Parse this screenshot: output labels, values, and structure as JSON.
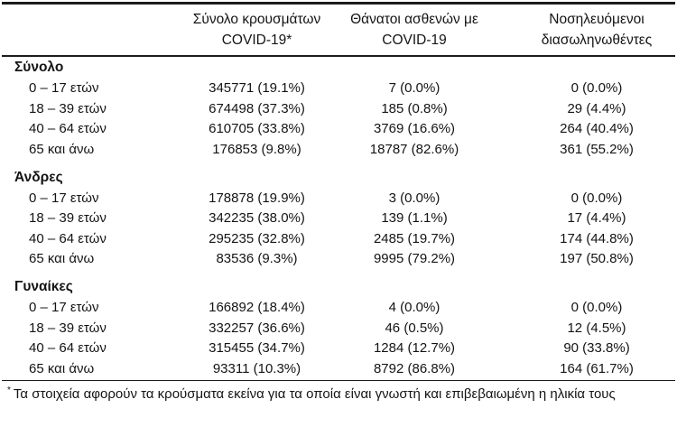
{
  "header": {
    "col_cases": "Σύνολο κρουσμάτων COVID-19*",
    "col_deaths": "Θάνατοι ασθενών με COVID-19",
    "col_intubated": "Νοσηλευόμενοι διασωληνωθέντες"
  },
  "sections": [
    {
      "title": "Σύνολο",
      "rows": [
        {
          "label": "0 – 17 ετών",
          "cases": "345771 (19.1%)",
          "deaths": "7 (0.0%)",
          "intubated": "0 (0.0%)"
        },
        {
          "label": "18 – 39 ετών",
          "cases": "674498 (37.3%)",
          "deaths": "185 (0.8%)",
          "intubated": "29 (4.4%)"
        },
        {
          "label": "40 – 64 ετών",
          "cases": "610705 (33.8%)",
          "deaths": "3769 (16.6%)",
          "intubated": "264 (40.4%)"
        },
        {
          "label": "65 και άνω",
          "cases": "176853 (9.8%)",
          "deaths": "18787 (82.6%)",
          "intubated": "361 (55.2%)"
        }
      ]
    },
    {
      "title": "Άνδρες",
      "rows": [
        {
          "label": "0 – 17 ετών",
          "cases": "178878 (19.9%)",
          "deaths": "3 (0.0%)",
          "intubated": "0 (0.0%)"
        },
        {
          "label": "18 – 39 ετών",
          "cases": "342235 (38.0%)",
          "deaths": "139 (1.1%)",
          "intubated": "17 (4.4%)"
        },
        {
          "label": "40 – 64 ετών",
          "cases": "295235 (32.8%)",
          "deaths": "2485 (19.7%)",
          "intubated": "174 (44.8%)"
        },
        {
          "label": "65 και άνω",
          "cases": "83536 (9.3%)",
          "deaths": "9995 (79.2%)",
          "intubated": "197 (50.8%)"
        }
      ]
    },
    {
      "title": "Γυναίκες",
      "rows": [
        {
          "label": "0 – 17 ετών",
          "cases": "166892 (18.4%)",
          "deaths": "4 (0.0%)",
          "intubated": "0 (0.0%)"
        },
        {
          "label": "18 – 39 ετών",
          "cases": "332257 (36.6%)",
          "deaths": "46 (0.5%)",
          "intubated": "12 (4.5%)"
        },
        {
          "label": "40 – 64 ετών",
          "cases": "315455 (34.7%)",
          "deaths": "1284 (12.7%)",
          "intubated": "90 (33.8%)"
        },
        {
          "label": "65 και άνω",
          "cases": "93311 (10.3%)",
          "deaths": "8792 (86.8%)",
          "intubated": "164 (61.7%)"
        }
      ]
    }
  ],
  "footnote": {
    "marker": "*",
    "text": "Τα στοιχεία αφορούν τα κρούσματα εκείνα για τα οποία είναι γνωστή και επιβεβαιωμένη η ηλικία τους"
  }
}
